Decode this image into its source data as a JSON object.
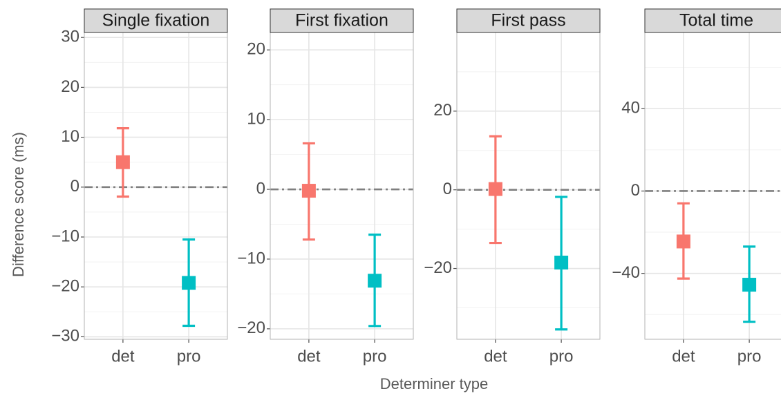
{
  "chart_data": {
    "type": "errorbar",
    "xlabel": "Determiner type",
    "ylabel": "Difference score (ms)",
    "categories": [
      "det",
      "pro"
    ],
    "colors": {
      "det": "#F8766D",
      "pro": "#00BFC4",
      "zero_line": "#7f7f7f"
    },
    "panels": [
      {
        "title": "Single fixation",
        "ylim": [
          -30.5,
          31
        ],
        "yticks": [
          30,
          20,
          10,
          0,
          -10,
          -20,
          -30
        ],
        "points": [
          {
            "category": "det",
            "mean": 5.0,
            "lower": -1.9,
            "upper": 11.8
          },
          {
            "category": "pro",
            "mean": -19.2,
            "lower": -27.8,
            "upper": -10.5
          }
        ]
      },
      {
        "title": "First fixation",
        "ylim": [
          -21.5,
          22.5
        ],
        "yticks": [
          20,
          10,
          0,
          -10,
          -20
        ],
        "points": [
          {
            "category": "det",
            "mean": -0.2,
            "lower": -7.2,
            "upper": 6.6
          },
          {
            "category": "pro",
            "mean": -13.1,
            "lower": -19.6,
            "upper": -6.5
          }
        ]
      },
      {
        "title": "First pass",
        "ylim": [
          -38,
          40
        ],
        "yticks": [
          20,
          0,
          -20
        ],
        "points": [
          {
            "category": "det",
            "mean": 0.2,
            "lower": -13.5,
            "upper": 13.6
          },
          {
            "category": "pro",
            "mean": -18.5,
            "lower": -35.5,
            "upper": -1.8
          }
        ]
      },
      {
        "title": "Total time",
        "ylim": [
          -72,
          77
        ],
        "yticks": [
          40,
          0,
          -40
        ],
        "points": [
          {
            "category": "det",
            "mean": -24.5,
            "lower": -42.5,
            "upper": -6.0
          },
          {
            "category": "pro",
            "mean": -45.5,
            "lower": -63.5,
            "upper": -27.0
          }
        ]
      }
    ]
  }
}
